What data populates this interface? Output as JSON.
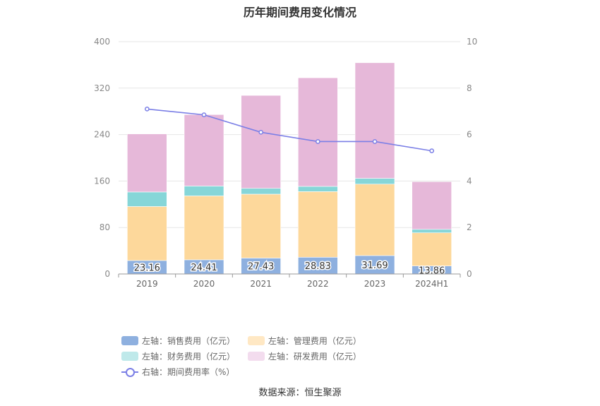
{
  "chart_data": {
    "type": "bar",
    "title": "历年期间费用变化情况",
    "categories": [
      "2019",
      "2020",
      "2021",
      "2022",
      "2023",
      "2024H1"
    ],
    "stacked": true,
    "y_left": {
      "ylim": [
        0,
        400
      ],
      "ticks": [
        "0",
        "80",
        "160",
        "240",
        "320",
        "400"
      ]
    },
    "y_right": {
      "ylim": [
        0,
        10
      ],
      "ticks": [
        "0",
        "2",
        "4",
        "6",
        "8",
        "10"
      ]
    },
    "grid": true,
    "legend_position": "bottom",
    "series": [
      {
        "name": "左轴：销售费用（亿元）",
        "axis": "left",
        "type": "bar",
        "color": "#8eb0df",
        "values": [
          23.16,
          24.41,
          27.43,
          28.83,
          31.69,
          13.86
        ],
        "labels": [
          "23.16",
          "24.41",
          "27.43",
          "28.83",
          "31.69",
          "13.86"
        ]
      },
      {
        "name": "左轴：管理费用（亿元）",
        "axis": "left",
        "type": "bar",
        "color": "#fdd89b",
        "values": [
          93,
          110,
          110,
          113,
          123,
          57
        ]
      },
      {
        "name": "左轴：财务费用（亿元）",
        "axis": "left",
        "type": "bar",
        "color": "#86d6d8",
        "values": [
          25,
          17,
          10,
          9,
          10,
          6
        ]
      },
      {
        "name": "左轴：研发费用（亿元）",
        "axis": "left",
        "type": "bar",
        "color": "#e6b8d9",
        "values": [
          100,
          123,
          160,
          187,
          199,
          82
        ]
      },
      {
        "name": "右轴：期间费用率（%）",
        "axis": "right",
        "type": "line",
        "color": "#7b7fe6",
        "values": [
          7.1,
          6.85,
          6.1,
          5.7,
          5.7,
          5.3
        ]
      }
    ],
    "legend_colors": [
      "#8eb0df",
      "#ffe8c4",
      "#bfe9ea",
      "#f3dcee"
    ]
  },
  "source": "数据来源：恒生聚源"
}
